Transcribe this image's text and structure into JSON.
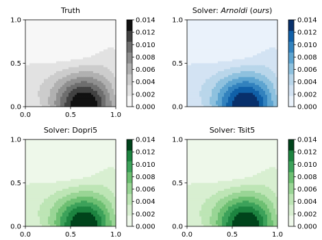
{
  "chart_data": [
    {
      "type": "heatmap",
      "title": "Truth",
      "title_parts": [
        {
          "text": "Truth",
          "style": "normal"
        }
      ],
      "cmap": "Greys",
      "xlim": [
        0.0,
        1.0
      ],
      "ylim": [
        0.0,
        1.0
      ],
      "xticks": [
        "0.0",
        "0.5",
        "1.0"
      ],
      "yticks": [
        "0.0",
        "0.5",
        "1.0"
      ],
      "colorbar_ticks": [
        "0.000",
        "0.002",
        "0.004",
        "0.006",
        "0.008",
        "0.010",
        "0.012",
        "0.014"
      ],
      "colorbar_range": [
        0.0,
        0.014
      ],
      "peak": {
        "x": 0.65,
        "y": 0.0,
        "value": 0.014
      }
    },
    {
      "type": "heatmap",
      "title": "Solver: Arnoldi (ours)",
      "title_parts": [
        {
          "text": "Solver: ",
          "style": "normal"
        },
        {
          "text": "Arnoldi",
          "style": "italic"
        },
        {
          "text": " (",
          "style": "normal"
        },
        {
          "text": "ours",
          "style": "italic"
        },
        {
          "text": ")",
          "style": "normal"
        }
      ],
      "cmap": "Blues",
      "xlim": [
        0.0,
        1.0
      ],
      "ylim": [
        0.0,
        1.0
      ],
      "xticks": [],
      "yticks": [
        "0.0",
        "0.5",
        "1.0"
      ],
      "colorbar_ticks": [
        "0.000",
        "0.002",
        "0.004",
        "0.006",
        "0.008",
        "0.010",
        "0.012",
        "0.014"
      ],
      "colorbar_range": [
        0.0,
        0.014
      ],
      "peak": {
        "x": 0.65,
        "y": 0.0,
        "value": 0.014
      }
    },
    {
      "type": "heatmap",
      "title": "Solver: Dopri5",
      "title_parts": [
        {
          "text": "Solver: Dopri5",
          "style": "normal"
        }
      ],
      "cmap": "Greens",
      "xlim": [
        0.0,
        1.0
      ],
      "ylim": [
        0.0,
        1.0
      ],
      "xticks": [
        "0.0",
        "0.5",
        "1.0"
      ],
      "yticks": [
        "0.0",
        "0.5",
        "1.0"
      ],
      "colorbar_ticks": [
        "0.000",
        "0.002",
        "0.004",
        "0.006",
        "0.008",
        "0.010",
        "0.012",
        "0.014"
      ],
      "colorbar_range": [
        0.0,
        0.014
      ],
      "peak": {
        "x": 0.65,
        "y": 0.0,
        "value": 0.014
      }
    },
    {
      "type": "heatmap",
      "title": "Solver: Tsit5",
      "title_parts": [
        {
          "text": "Solver: Tsit5",
          "style": "normal"
        }
      ],
      "cmap": "Greens",
      "xlim": [
        0.0,
        1.0
      ],
      "ylim": [
        0.0,
        1.0
      ],
      "xticks": [
        "0.0",
        "0.5",
        "1.0"
      ],
      "yticks": [
        "0.0",
        "0.5",
        "1.0"
      ],
      "colorbar_ticks": [
        "0.000",
        "0.002",
        "0.004",
        "0.006",
        "0.008",
        "0.010",
        "0.012",
        "0.014"
      ],
      "colorbar_range": [
        0.0,
        0.014
      ],
      "peak": {
        "x": 0.65,
        "y": 0.0,
        "value": 0.014
      }
    }
  ],
  "colormaps": {
    "Greys": [
      "#f7f7f7",
      "#e2e2e2",
      "#cccccc",
      "#b0b0b0",
      "#8f8f8f",
      "#6e6e6e",
      "#424242",
      "#111111"
    ],
    "Blues": [
      "#eaf2fb",
      "#d3e3f3",
      "#b9d6ea",
      "#8ec1de",
      "#5da4d0",
      "#3282be",
      "#1060a8",
      "#08306b"
    ],
    "Greens": [
      "#eef8ea",
      "#d8efd1",
      "#bde5b5",
      "#99d595",
      "#6dbf72",
      "#3da25a",
      "#1d8440",
      "#00441b"
    ]
  }
}
